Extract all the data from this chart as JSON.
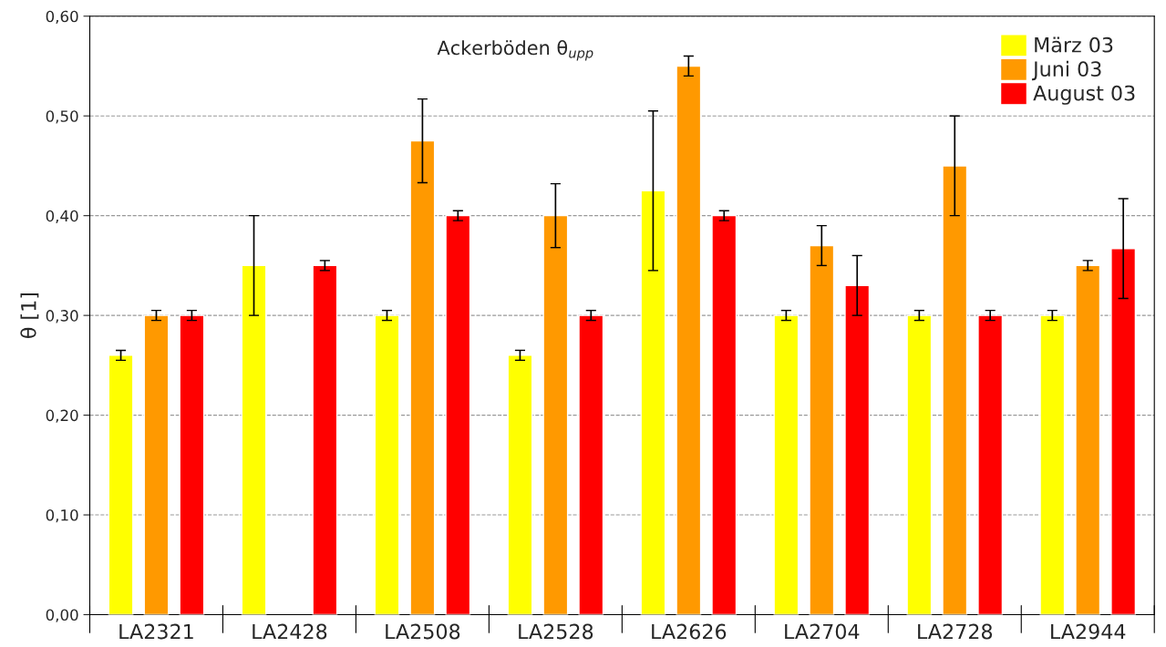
{
  "chart_data": {
    "type": "bar",
    "title": "Ackerböden θ$_{upp}$",
    "ylabel": "θ [1]",
    "categories": [
      "LA2321",
      "LA2428",
      "LA2508",
      "LA2528",
      "LA2626",
      "LA2704",
      "LA2728",
      "LA2944"
    ],
    "series": [
      {
        "name": "März 03",
        "color": "#ffff00",
        "values": [
          0.26,
          0.35,
          0.3,
          0.26,
          0.425,
          0.3,
          0.3,
          0.3
        ],
        "errors": [
          0.005,
          0.05,
          0.005,
          0.005,
          0.08,
          0.005,
          0.005,
          0.005
        ]
      },
      {
        "name": "Juni 03",
        "color": "#ff9900",
        "values": [
          0.3,
          null,
          0.475,
          0.4,
          0.55,
          0.37,
          0.45,
          0.35
        ],
        "errors": [
          0.005,
          null,
          0.042,
          0.032,
          0.01,
          0.02,
          0.05,
          0.005
        ]
      },
      {
        "name": "August 03",
        "color": "#ff0000",
        "values": [
          0.3,
          0.35,
          0.4,
          0.3,
          0.4,
          0.33,
          0.3,
          0.367
        ],
        "errors": [
          0.005,
          0.005,
          0.005,
          0.005,
          0.005,
          0.03,
          0.005,
          0.05
        ]
      }
    ],
    "ylim": [
      0,
      0.6
    ],
    "yticks": [
      {
        "value": 0,
        "label": "0,00"
      },
      {
        "value": 0.1,
        "label": "0,10"
      },
      {
        "value": 0.2,
        "label": "0,20"
      },
      {
        "value": 0.3,
        "label": "0,30"
      },
      {
        "value": 0.4,
        "label": "0,40"
      },
      {
        "value": 0.5,
        "label": "0,50"
      },
      {
        "value": 0.6,
        "label": "0,60"
      }
    ],
    "grid": "y",
    "legend": "top right"
  }
}
